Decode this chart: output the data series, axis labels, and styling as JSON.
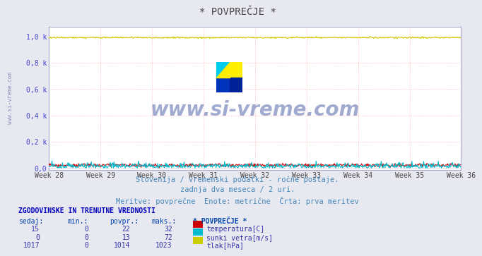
{
  "title": "* POVPREČJE *",
  "bg_color": "#e8e8f0",
  "plot_bg_color": "#ffffff",
  "grid_color_h": "#ffaaaa",
  "grid_color_v": "#ffcccc",
  "x_ticks_labels": [
    "Week 28",
    "Week 29",
    "Week 30",
    "Week 31",
    "Week 32",
    "Week 33",
    "Week 34",
    "Week 35",
    "Week 36"
  ],
  "y_ticks": [
    0.0,
    0.2,
    0.4,
    0.6,
    0.8,
    1.0
  ],
  "y_tick_labels": [
    "0,0",
    "0,2 k",
    "0,4 k",
    "0,6 k",
    "0,8 k",
    "1,0 k"
  ],
  "subtitle1": "Slovenija / vremenski podatki - ročne postaje.",
  "subtitle2": "zadnja dva meseca / 2 uri.",
  "subtitle3": "Meritve: povprečne  Enote: metrične  Črta: prva meritev",
  "watermark": "www.si-vreme.com",
  "n_points": 672,
  "temp_color": "#cc0000",
  "sunki_color": "#00bbcc",
  "tlak_color": "#cccc00",
  "left_label_color": "#4444cc",
  "title_color": "#444444",
  "subtitle_color": "#4488bb",
  "table_header_color": "#0000bb",
  "table_col_color": "#0044aa",
  "table_data_color": "#3333aa",
  "left_watermark_color": "#8888bb",
  "border_color": "#aaaacc"
}
